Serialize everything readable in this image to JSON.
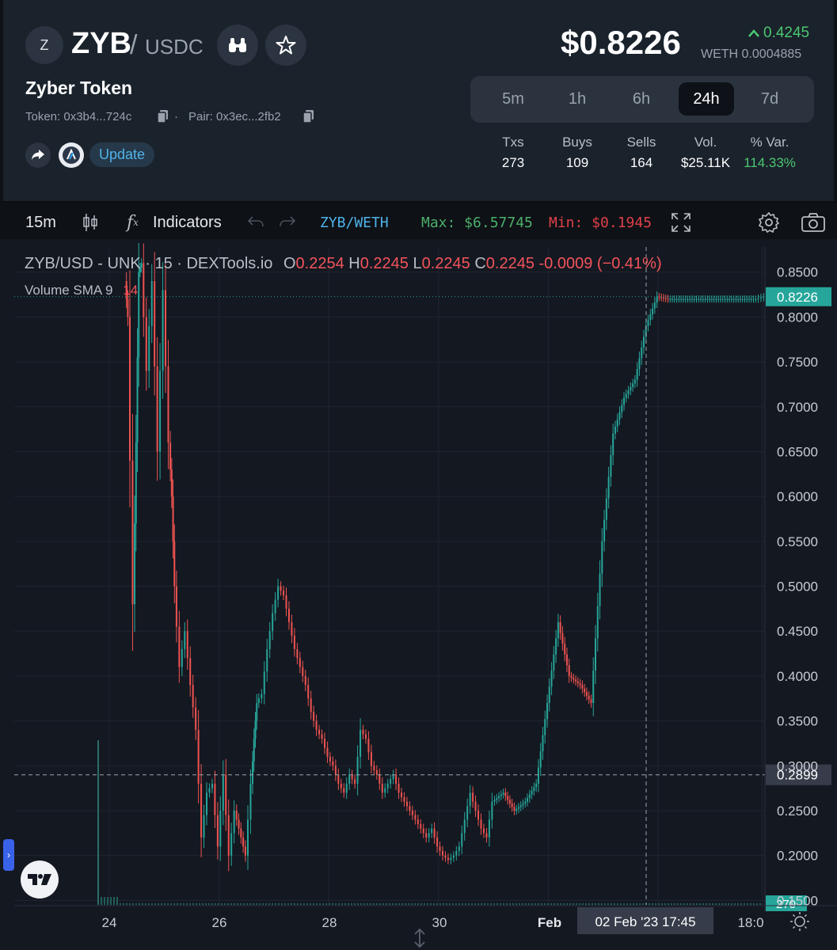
{
  "header": {
    "logo_letter": "Z",
    "base_symbol": "ZYB",
    "slash": "/",
    "quote_symbol": "USDC",
    "token_name": "Zyber Token",
    "token_address": "Token: 0x3b4...724c",
    "separator": "·",
    "pair_address": "Pair: 0x3ec...2fb2",
    "update_label": "Update",
    "price": "$0.8226",
    "change": "0.4245",
    "weth_price": "WETH 0.0004885"
  },
  "timeframes": [
    {
      "label": "5m",
      "active": false
    },
    {
      "label": "1h",
      "active": false
    },
    {
      "label": "6h",
      "active": false
    },
    {
      "label": "24h",
      "active": true
    },
    {
      "label": "7d",
      "active": false
    }
  ],
  "stats": [
    {
      "label": "Txs",
      "value": "273"
    },
    {
      "label": "Buys",
      "value": "109"
    },
    {
      "label": "Sells",
      "value": "164"
    },
    {
      "label": "Vol.",
      "value": "$25.11K"
    },
    {
      "label": "% Var.",
      "value": "114.33%"
    }
  ],
  "toolbar": {
    "interval": "15m",
    "fx_label": "f",
    "indicators_label": "Indicators",
    "pair": "ZYB/WETH",
    "max": "Max: $6.57745",
    "min": "Min: $0.1945"
  },
  "legend": {
    "title": "ZYB/USD - UNK · 15 · DEXTools.io",
    "o_label": "O",
    "o": "0.2254",
    "h_label": "H",
    "h": "0.2245",
    "l_label": "L",
    "l": "0.2245",
    "c_label": "C",
    "c": "0.2245",
    "change": "-0.0009 (−0.41%)",
    "volume_label": "Volume SMA 9",
    "volume_value": "14"
  },
  "colors": {
    "up": "#26a69a",
    "down": "#ef5350",
    "accent": "#4fb3e8"
  },
  "icons": [
    "binoculars-icon",
    "star-icon",
    "copy-icon",
    "share-icon",
    "arbitrum-icon",
    "candles-icon",
    "undo-icon",
    "redo-icon",
    "fullscreen-icon",
    "settings-icon",
    "camera-icon",
    "tradingview-logo",
    "sun-icon"
  ],
  "chart_data": {
    "type": "line",
    "title": "ZYB/USD - UNK · 15 · DEXTools.io",
    "y_axis_ticks": [
      "0.8500",
      "0.8000",
      "0.7500",
      "0.7000",
      "0.6500",
      "0.6000",
      "0.5500",
      "0.5000",
      "0.4500",
      "0.4000",
      "0.3500",
      "0.3000",
      "0.2500",
      "0.2000",
      "0.1500"
    ],
    "ylim": [
      0.145,
      0.878
    ],
    "x_axis_ticks": [
      "24",
      "26",
      "28",
      "30",
      "Feb",
      "18:0"
    ],
    "last_price_label": "0.8226",
    "crosshair_price_label": "0.2899",
    "crosshair_time_label": "02 Feb '23   17:45",
    "volume_label": "270",
    "x_unit": "days (Jan 23, 2023 = day 23)",
    "series": [
      {
        "x": [
          24.3,
          24.35,
          24.45,
          24.5,
          24.55,
          24.6,
          24.7,
          24.8,
          24.9,
          25.0,
          25.1,
          25.15,
          25.2,
          25.3,
          25.4,
          25.5,
          25.6,
          25.7,
          25.8,
          25.9,
          26.0,
          26.1,
          26.2,
          26.3,
          26.5,
          26.6,
          26.65,
          26.7,
          26.8,
          26.9,
          27.0,
          27.1,
          27.2,
          27.3,
          27.4,
          27.5,
          27.6,
          27.7,
          27.8,
          27.9,
          28.0,
          28.1,
          28.2,
          28.3,
          28.4,
          28.5,
          28.6,
          28.7,
          28.8,
          28.9,
          29.0,
          29.1,
          29.2,
          29.3,
          29.4,
          29.5,
          29.6,
          29.7,
          29.8,
          29.9,
          30.0,
          30.1,
          30.2,
          30.3,
          30.4,
          30.5,
          30.6,
          30.7,
          30.8,
          30.9,
          31.0,
          31.2,
          31.4,
          31.6,
          31.8,
          32.0,
          32.2,
          32.4,
          32.6,
          32.8,
          33.0,
          33.2,
          33.4,
          33.6,
          33.8,
          34.0,
          34.2,
          34.4,
          34.6,
          34.8,
          35.0,
          35.2,
          35.4,
          35.6,
          35.8,
          35.95
        ],
        "values": [
          0.84,
          0.8,
          0.48,
          0.66,
          0.85,
          0.86,
          0.74,
          0.84,
          0.65,
          0.83,
          0.66,
          0.6,
          0.5,
          0.41,
          0.45,
          0.39,
          0.34,
          0.22,
          0.27,
          0.28,
          0.21,
          0.29,
          0.2,
          0.25,
          0.2,
          0.28,
          0.33,
          0.37,
          0.38,
          0.43,
          0.47,
          0.5,
          0.49,
          0.46,
          0.43,
          0.41,
          0.39,
          0.36,
          0.34,
          0.33,
          0.31,
          0.3,
          0.28,
          0.27,
          0.29,
          0.28,
          0.34,
          0.33,
          0.3,
          0.29,
          0.27,
          0.28,
          0.29,
          0.27,
          0.26,
          0.25,
          0.24,
          0.23,
          0.22,
          0.23,
          0.21,
          0.2,
          0.195,
          0.2,
          0.21,
          0.24,
          0.27,
          0.25,
          0.23,
          0.22,
          0.26,
          0.27,
          0.25,
          0.26,
          0.28,
          0.37,
          0.46,
          0.4,
          0.39,
          0.37,
          0.55,
          0.67,
          0.71,
          0.73,
          0.79,
          0.8226,
          0.82,
          0.82,
          0.82,
          0.82,
          0.82,
          0.82,
          0.82,
          0.82,
          0.82,
          0.8226
        ]
      }
    ]
  }
}
